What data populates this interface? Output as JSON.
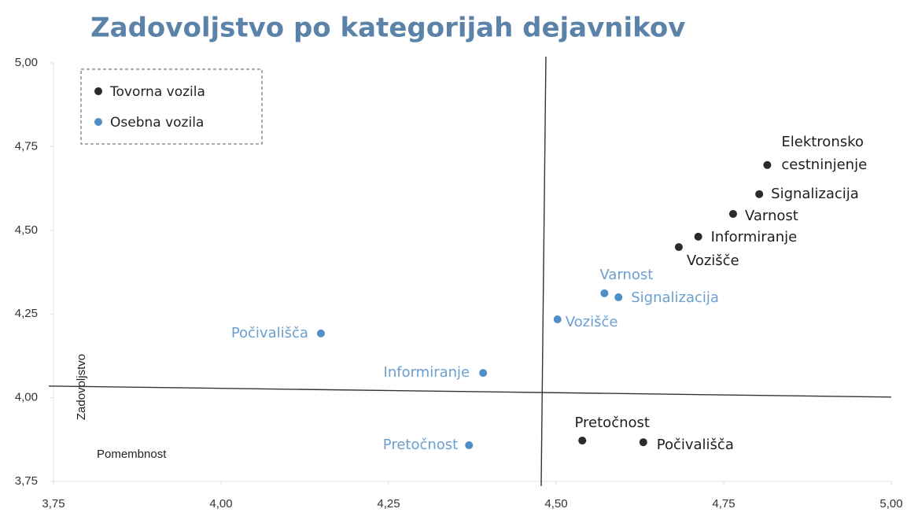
{
  "chart_data": {
    "type": "scatter",
    "title": "Zadovoljstvo po kategorijah dejavnikov",
    "x_label": "Pomembnost",
    "y_label": "Zadovoljstvo",
    "xlim": [
      3.75,
      5.0
    ],
    "ylim": [
      3.75,
      5.0
    ],
    "xticks": [
      {
        "value": 3.75,
        "label": "3,75"
      },
      {
        "value": 4.0,
        "label": "4,00"
      },
      {
        "value": 4.25,
        "label": "4,25"
      },
      {
        "value": 4.5,
        "label": "4,50"
      },
      {
        "value": 4.75,
        "label": "4,75"
      },
      {
        "value": 5.0,
        "label": "5,00"
      }
    ],
    "yticks": [
      {
        "value": 3.75,
        "label": "3,75"
      },
      {
        "value": 4.0,
        "label": "4,00"
      },
      {
        "value": 4.25,
        "label": "4,25"
      },
      {
        "value": 4.5,
        "label": "4,50"
      },
      {
        "value": 4.75,
        "label": "4,75"
      },
      {
        "value": 5.0,
        "label": "5,00"
      }
    ],
    "reference_lines": {
      "x": 4.48,
      "y": 4.03
    },
    "legend": "upper left",
    "series": [
      {
        "name": "Tovorna vozila",
        "color": "#2b2b2b",
        "label_color": "#1e1e1e",
        "x": [
          4.815,
          4.803,
          4.764,
          4.712,
          4.683,
          4.539,
          4.63
        ],
        "y": [
          4.695,
          4.608,
          4.549,
          4.481,
          4.45,
          3.872,
          3.867
        ],
        "labels": [
          [
            "Elektronsko",
            "cestninjenje"
          ],
          [
            "Signalizacija"
          ],
          [
            "Varnost"
          ],
          [
            "Informiranje"
          ],
          [
            "Vozišče"
          ],
          [
            "Pretočnost"
          ],
          [
            "Počivališča"
          ]
        ]
      },
      {
        "name": "Osebna vozila",
        "color": "#4f8fc8",
        "label_color": "#6a9fcf",
        "x": [
          4.572,
          4.593,
          4.502,
          4.149,
          4.391,
          4.37
        ],
        "y": [
          4.312,
          4.3,
          4.234,
          4.192,
          4.074,
          3.858
        ],
        "labels": [
          [
            "Varnost"
          ],
          [
            "Signalizacija"
          ],
          [
            "Vozišče"
          ],
          [
            "Počivališča"
          ],
          [
            "Informiranje"
          ],
          [
            "Pretočnost"
          ]
        ]
      }
    ]
  }
}
